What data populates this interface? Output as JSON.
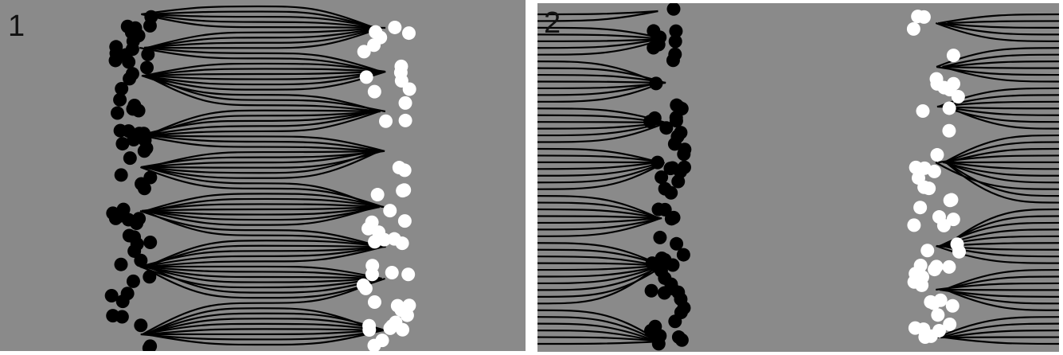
{
  "panels": [
    {
      "label": "1"
    },
    {
      "label": "2"
    }
  ],
  "colors": {
    "background": "#8a8a8a",
    "field_line": "#000000",
    "negative_charge": "#000000",
    "positive_charge": "#ffffff"
  }
}
